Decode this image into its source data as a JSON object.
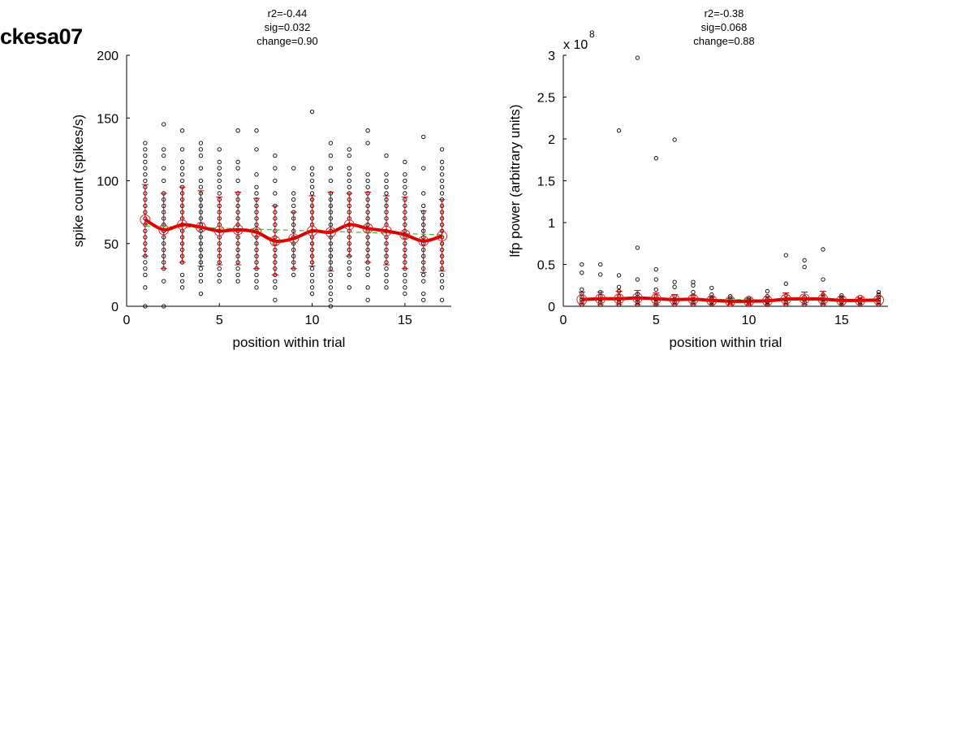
{
  "figure": {
    "label": "ckesa07"
  },
  "chart_data": [
    {
      "type": "scatter",
      "title_lines": [
        "r2=-0.44",
        "sig=0.032",
        "change=0.90"
      ],
      "xlabel": "position within trial",
      "ylabel": "spike count (spikes/s)",
      "exponent_label": "",
      "xlim": [
        0,
        17.5
      ],
      "ylim": [
        0,
        200
      ],
      "xticks": [
        0,
        5,
        10,
        15
      ],
      "yticks": [
        0,
        50,
        100,
        150,
        200
      ],
      "raw_points": {
        "1": [
          0,
          15,
          25,
          30,
          35,
          40,
          45,
          50,
          55,
          60,
          65,
          70,
          75,
          80,
          85,
          90,
          95,
          100,
          105,
          110,
          115,
          120,
          125,
          130
        ],
        "2": [
          0,
          20,
          30,
          35,
          40,
          45,
          50,
          55,
          60,
          65,
          70,
          75,
          80,
          85,
          90,
          100,
          110,
          120,
          125,
          145
        ],
        "3": [
          15,
          20,
          25,
          35,
          40,
          45,
          50,
          55,
          60,
          65,
          70,
          75,
          80,
          85,
          90,
          95,
          100,
          105,
          110,
          115,
          125,
          140
        ],
        "4": [
          10,
          20,
          25,
          30,
          35,
          40,
          45,
          50,
          55,
          60,
          65,
          70,
          75,
          80,
          85,
          90,
          95,
          100,
          110,
          120,
          125,
          130
        ],
        "5": [
          20,
          25,
          30,
          35,
          40,
          45,
          50,
          55,
          60,
          65,
          70,
          75,
          80,
          85,
          90,
          95,
          100,
          105,
          110,
          115,
          125
        ],
        "6": [
          20,
          25,
          30,
          35,
          40,
          45,
          50,
          55,
          60,
          65,
          70,
          75,
          80,
          85,
          90,
          100,
          110,
          115,
          140
        ],
        "7": [
          15,
          20,
          25,
          30,
          35,
          40,
          45,
          50,
          55,
          60,
          65,
          70,
          75,
          80,
          85,
          90,
          95,
          105,
          125,
          140
        ],
        "8": [
          5,
          15,
          20,
          25,
          30,
          35,
          40,
          45,
          50,
          55,
          60,
          65,
          70,
          75,
          80,
          90,
          100,
          110,
          120
        ],
        "9": [
          25,
          30,
          35,
          40,
          45,
          50,
          55,
          60,
          65,
          70,
          75,
          80,
          85,
          90,
          110
        ],
        "10": [
          10,
          15,
          20,
          25,
          30,
          35,
          40,
          45,
          50,
          55,
          60,
          65,
          70,
          75,
          80,
          85,
          90,
          95,
          100,
          105,
          110,
          155
        ],
        "11": [
          0,
          5,
          10,
          15,
          20,
          25,
          30,
          35,
          40,
          45,
          50,
          55,
          60,
          65,
          70,
          75,
          80,
          85,
          90,
          100,
          110,
          120,
          130
        ],
        "12": [
          15,
          25,
          30,
          35,
          40,
          45,
          50,
          55,
          60,
          65,
          70,
          75,
          80,
          85,
          90,
          95,
          100,
          105,
          110,
          120,
          125
        ],
        "13": [
          5,
          15,
          25,
          30,
          35,
          40,
          45,
          50,
          55,
          60,
          65,
          70,
          75,
          80,
          85,
          90,
          95,
          100,
          105,
          130,
          140
        ],
        "14": [
          15,
          20,
          25,
          30,
          35,
          40,
          45,
          50,
          55,
          60,
          65,
          70,
          75,
          80,
          85,
          90,
          95,
          100,
          105,
          120
        ],
        "15": [
          10,
          15,
          20,
          25,
          30,
          35,
          40,
          45,
          50,
          55,
          60,
          65,
          70,
          75,
          80,
          85,
          90,
          95,
          100,
          105,
          115
        ],
        "16": [
          5,
          10,
          20,
          25,
          30,
          35,
          40,
          45,
          50,
          55,
          60,
          65,
          70,
          75,
          80,
          90,
          110,
          135
        ],
        "17": [
          5,
          15,
          20,
          25,
          30,
          35,
          40,
          45,
          50,
          55,
          60,
          65,
          70,
          75,
          80,
          85,
          90,
          95,
          100,
          105,
          110,
          115,
          125
        ]
      },
      "means": [
        69,
        61,
        65,
        63,
        60,
        61,
        59,
        52,
        54,
        60,
        59,
        65,
        62,
        60,
        57,
        52,
        56
      ],
      "error_bars": [
        [
          40,
          97
        ],
        [
          30,
          90
        ],
        [
          35,
          95
        ],
        [
          32,
          92
        ],
        [
          33,
          87
        ],
        [
          33,
          91
        ],
        [
          30,
          86
        ],
        [
          25,
          80
        ],
        [
          30,
          75
        ],
        [
          32,
          88
        ],
        [
          28,
          91
        ],
        [
          40,
          90
        ],
        [
          35,
          91
        ],
        [
          33,
          88
        ],
        [
          30,
          87
        ],
        [
          27,
          76
        ],
        [
          28,
          85
        ]
      ],
      "trend_line": {
        "x": [
          1,
          17
        ],
        "y": [
          64,
          57
        ]
      }
    },
    {
      "type": "scatter",
      "title_lines": [
        "r2=-0.38",
        "sig=0.068",
        "change=0.88"
      ],
      "xlabel": "position within trial",
      "ylabel": "lfp power (arbitrary units)",
      "exponent_label": "x 10",
      "exponent_power": "8",
      "xlim": [
        0,
        17.5
      ],
      "ylim": [
        0,
        3
      ],
      "xticks": [
        0,
        5,
        10,
        15
      ],
      "yticks": [
        0,
        0.5,
        1,
        1.5,
        2,
        2.5,
        3
      ],
      "ytick_labels": [
        "0",
        "0.5",
        "1",
        "1.5",
        "2",
        "2.5",
        "3"
      ],
      "raw_points": {
        "1": [
          0.02,
          0.05,
          0.08,
          0.11,
          0.15,
          0.2,
          0.4,
          0.5
        ],
        "2": [
          0.02,
          0.05,
          0.08,
          0.12,
          0.17,
          0.38,
          0.5
        ],
        "3": [
          0.02,
          0.05,
          0.08,
          0.12,
          0.18,
          0.23,
          0.37,
          2.1
        ],
        "4": [
          0.02,
          0.05,
          0.08,
          0.11,
          0.15,
          0.32,
          0.7,
          2.97
        ],
        "5": [
          0.02,
          0.05,
          0.08,
          0.12,
          0.2,
          0.32,
          0.44,
          1.77
        ],
        "6": [
          0.02,
          0.05,
          0.08,
          0.12,
          0.23,
          0.29,
          1.99
        ],
        "7": [
          0.02,
          0.05,
          0.08,
          0.12,
          0.17,
          0.25,
          0.29
        ],
        "8": [
          0.02,
          0.05,
          0.08,
          0.1,
          0.14,
          0.22
        ],
        "9": [
          0.02,
          0.04,
          0.07,
          0.1,
          0.12
        ],
        "10": [
          0.02,
          0.04,
          0.06,
          0.08,
          0.1
        ],
        "11": [
          0.02,
          0.05,
          0.08,
          0.12,
          0.18
        ],
        "12": [
          0.02,
          0.05,
          0.08,
          0.13,
          0.27,
          0.61
        ],
        "13": [
          0.02,
          0.05,
          0.08,
          0.11,
          0.47,
          0.55
        ],
        "14": [
          0.02,
          0.05,
          0.08,
          0.11,
          0.14,
          0.32,
          0.68
        ],
        "15": [
          0.02,
          0.05,
          0.08,
          0.1,
          0.13
        ],
        "16": [
          0.02,
          0.05,
          0.08,
          0.11
        ],
        "17": [
          0.02,
          0.05,
          0.08,
          0.11,
          0.14,
          0.17
        ]
      },
      "means": [
        0.08,
        0.09,
        0.09,
        0.1,
        0.09,
        0.08,
        0.085,
        0.07,
        0.06,
        0.06,
        0.065,
        0.085,
        0.09,
        0.085,
        0.07,
        0.07,
        0.075
      ],
      "error_bars": [
        [
          0.02,
          0.17
        ],
        [
          0.02,
          0.17
        ],
        [
          0.02,
          0.18
        ],
        [
          0.02,
          0.19
        ],
        [
          0.02,
          0.16
        ],
        [
          0.02,
          0.14
        ],
        [
          0.02,
          0.13
        ],
        [
          0.02,
          0.11
        ],
        [
          0.02,
          0.09
        ],
        [
          0.02,
          0.09
        ],
        [
          0.02,
          0.11
        ],
        [
          0.02,
          0.16
        ],
        [
          0.02,
          0.17
        ],
        [
          0.02,
          0.18
        ],
        [
          0.02,
          0.11
        ],
        [
          0.02,
          0.1
        ],
        [
          0.02,
          0.12
        ]
      ],
      "trend_line": {
        "x": [
          1,
          17
        ],
        "y": [
          0.095,
          0.065
        ]
      }
    }
  ]
}
